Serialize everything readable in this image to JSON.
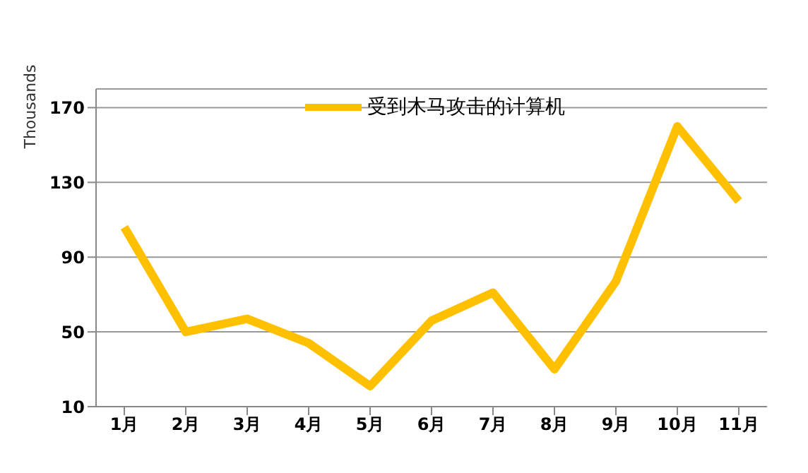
{
  "chart_data": {
    "type": "line",
    "ylabel": "Thousands",
    "categories": [
      "1月",
      "2月",
      "3月",
      "4月",
      "5月",
      "6月",
      "7月",
      "8月",
      "9月",
      "10月",
      "11月"
    ],
    "series": [
      {
        "name": "受到木马攻击的计算机",
        "color": "#ffc000",
        "values": [
          106,
          50,
          57,
          44,
          21,
          56,
          71,
          30,
          77,
          160,
          120
        ]
      }
    ],
    "ylim": [
      10,
      180
    ],
    "yticks": [
      10,
      50,
      90,
      130,
      170
    ],
    "grid": "y",
    "legend": "top",
    "marker": "none",
    "line_style": "solid"
  }
}
